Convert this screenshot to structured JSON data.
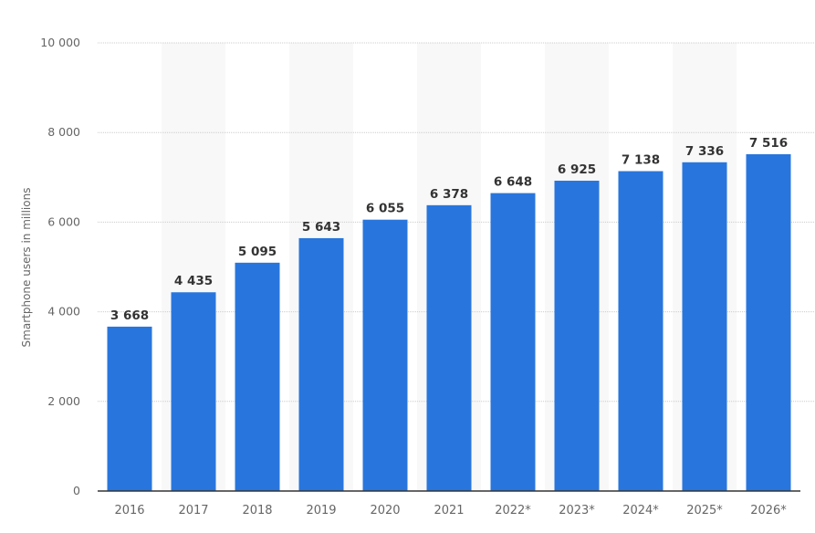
{
  "chart_data": {
    "type": "bar",
    "title": "",
    "xlabel": "",
    "ylabel": "Smartphone users in millions",
    "categories": [
      "2016",
      "2017",
      "2018",
      "2019",
      "2020",
      "2021",
      "2022*",
      "2023*",
      "2024*",
      "2025*",
      "2026*"
    ],
    "values": [
      3668,
      4435,
      5095,
      5643,
      6055,
      6378,
      6648,
      6925,
      7138,
      7336,
      7516
    ],
    "data_labels": [
      "3 668",
      "4 435",
      "5 095",
      "5 643",
      "6 055",
      "6 378",
      "6 648",
      "6 925",
      "7 138",
      "7 336",
      "7 516"
    ],
    "ylim": [
      0,
      10000
    ],
    "yticks": [
      0,
      2000,
      4000,
      6000,
      8000,
      10000
    ],
    "ytick_labels": [
      "0",
      "2 000",
      "4 000",
      "6 000",
      "8 000",
      "10 000"
    ],
    "grid": true,
    "legend": "none",
    "colors": {
      "bar": "#2876dd",
      "band": "#f8f8f8",
      "grid": "#cccccc",
      "axis": "#333333",
      "text": "#666666",
      "label": "#333333"
    }
  }
}
